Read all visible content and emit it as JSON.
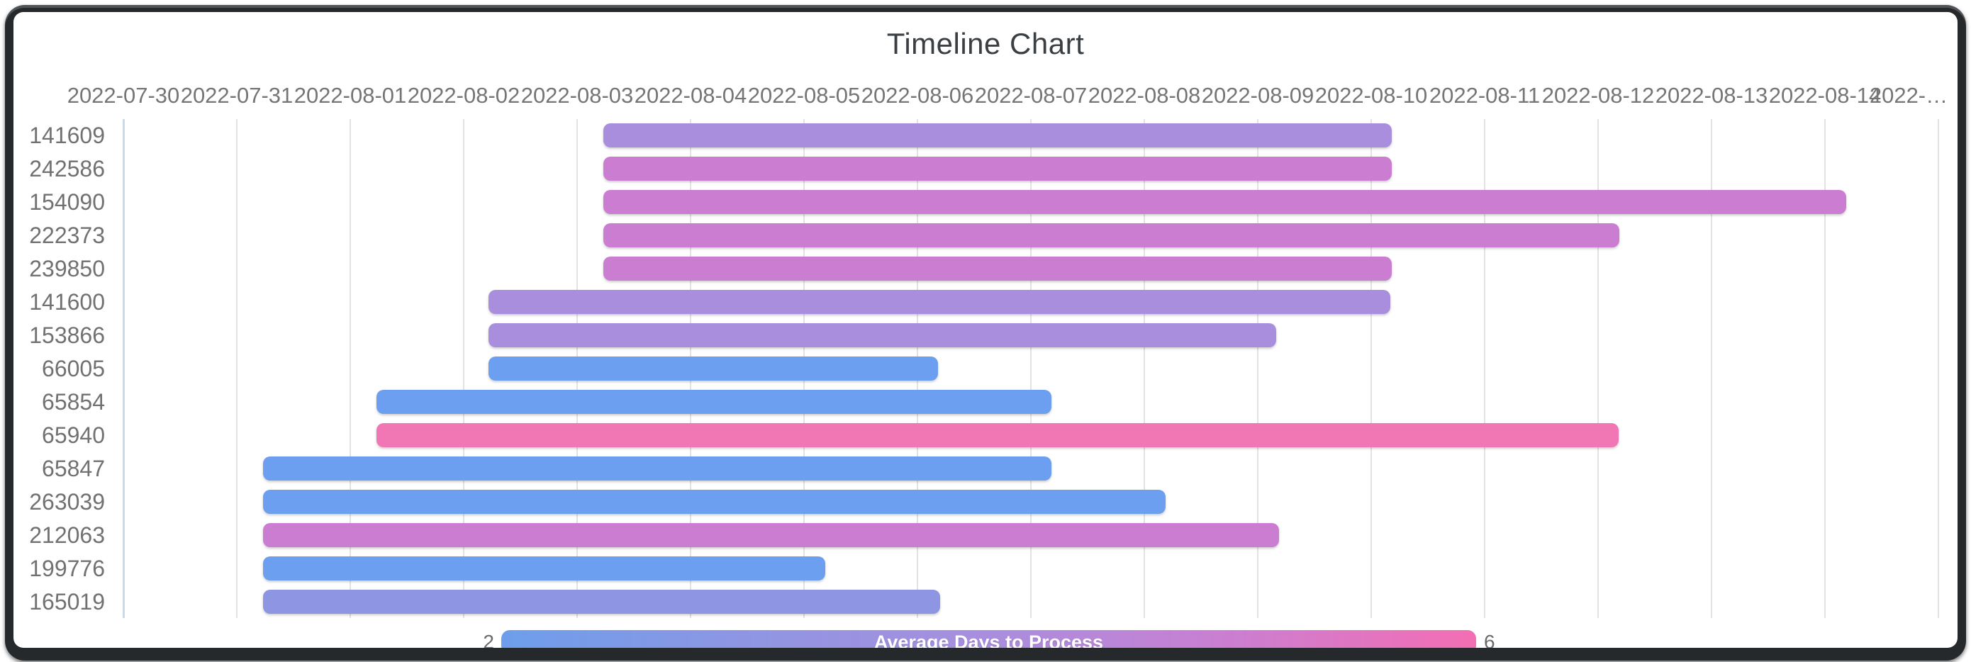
{
  "header": {
    "title": "Timeline Chart"
  },
  "chart_data": {
    "type": "bar",
    "variant": "timeline-gantt",
    "title": "Timeline Chart",
    "orientation": "horizontal",
    "grid": true,
    "x_axis": {
      "start_date": "2022-07-30",
      "tick_labels": [
        "2022-07-30",
        "2022-07-31",
        "2022-08-01",
        "2022-08-02",
        "2022-08-03",
        "2022-08-04",
        "2022-08-05",
        "2022-08-06",
        "2022-08-07",
        "2022-08-08",
        "2022-08-09",
        "2022-08-10",
        "2022-08-11",
        "2022-08-12",
        "2022-08-13",
        "2022-08-14",
        "2022-…"
      ]
    },
    "rows": [
      {
        "id": "141609",
        "start_date": "2022-08-03",
        "end_date": "2022-08-10",
        "duration_days": 7,
        "start_day": 4.23,
        "end_day": 11.18,
        "color": "#a98ede"
      },
      {
        "id": "242586",
        "start_date": "2022-08-03",
        "end_date": "2022-08-10",
        "duration_days": 7,
        "start_day": 4.23,
        "end_day": 11.18,
        "color": "#cb7ed1"
      },
      {
        "id": "154090",
        "start_date": "2022-08-03",
        "end_date": "2022-08-14",
        "duration_days": 11,
        "start_day": 4.23,
        "end_day": 15.19,
        "color": "#cb7ed1"
      },
      {
        "id": "222373",
        "start_date": "2022-08-03",
        "end_date": "2022-08-12",
        "duration_days": 9,
        "start_day": 4.23,
        "end_day": 13.19,
        "color": "#cb7ed1"
      },
      {
        "id": "239850",
        "start_date": "2022-08-03",
        "end_date": "2022-08-10",
        "duration_days": 7,
        "start_day": 4.23,
        "end_day": 11.18,
        "color": "#cb7ed1"
      },
      {
        "id": "141600",
        "start_date": "2022-08-02",
        "end_date": "2022-08-10",
        "duration_days": 8,
        "start_day": 3.22,
        "end_day": 11.17,
        "color": "#a98ede"
      },
      {
        "id": "153866",
        "start_date": "2022-08-02",
        "end_date": "2022-08-09",
        "duration_days": 7,
        "start_day": 3.22,
        "end_day": 10.16,
        "color": "#a98ede"
      },
      {
        "id": "66005",
        "start_date": "2022-08-02",
        "end_date": "2022-08-06",
        "duration_days": 4,
        "start_day": 3.22,
        "end_day": 7.18,
        "color": "#6d9ff0"
      },
      {
        "id": "65854",
        "start_date": "2022-08-01",
        "end_date": "2022-08-07",
        "duration_days": 6,
        "start_day": 2.23,
        "end_day": 8.18,
        "color": "#6d9ff0"
      },
      {
        "id": "65940",
        "start_date": "2022-08-01",
        "end_date": "2022-08-12",
        "duration_days": 11,
        "start_day": 2.23,
        "end_day": 13.18,
        "color": "#f177b4"
      },
      {
        "id": "65847",
        "start_date": "2022-07-31",
        "end_date": "2022-08-07",
        "duration_days": 7,
        "start_day": 1.23,
        "end_day": 8.18,
        "color": "#6d9ff0"
      },
      {
        "id": "263039",
        "start_date": "2022-07-31",
        "end_date": "2022-08-08",
        "duration_days": 8,
        "start_day": 1.23,
        "end_day": 9.19,
        "color": "#6d9ff0"
      },
      {
        "id": "212063",
        "start_date": "2022-07-31",
        "end_date": "2022-08-09",
        "duration_days": 9,
        "start_day": 1.23,
        "end_day": 10.19,
        "color": "#cb7ed1"
      },
      {
        "id": "199776",
        "start_date": "2022-07-31",
        "end_date": "2022-08-05",
        "duration_days": 5,
        "start_day": 1.23,
        "end_day": 6.19,
        "color": "#6d9ff0"
      },
      {
        "id": "165019",
        "start_date": "2022-07-31",
        "end_date": "2022-08-06",
        "duration_days": 6,
        "start_day": 1.23,
        "end_day": 7.2,
        "color": "#8e96e3"
      }
    ],
    "legend": {
      "label": "Average Days to Process",
      "min": "2",
      "max": "6",
      "gradient": [
        "#6d9eeb",
        "#8e96e3",
        "#a98ede",
        "#cb7ed1",
        "#f46eb3"
      ]
    },
    "colors": {
      "gridline": "#e3e3e3",
      "first_gridline": "#c9d8ea",
      "axis_text": "#757575",
      "title_text": "#3a3f44",
      "frame": "#26292c"
    }
  }
}
